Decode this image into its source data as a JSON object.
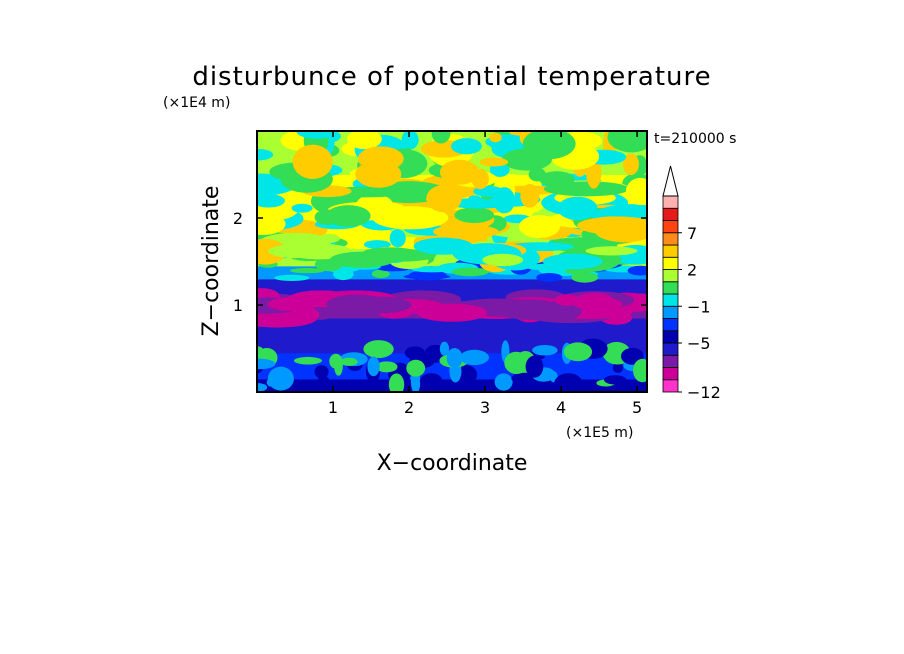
{
  "chart_data": {
    "type": "heatmap",
    "title": "disturbunce of potential temperature",
    "xlabel": "X−coordinate",
    "ylabel": "Z−coordinate",
    "x_unit": "(×1E5 m)",
    "y_unit": "(×1E4 m)",
    "time_label": "t=210000 s",
    "xlim": [
      0,
      5.13
    ],
    "ylim": [
      0,
      3.0
    ],
    "x_ticks": [
      1,
      2,
      3,
      4,
      5
    ],
    "y_ticks": [
      1,
      2
    ],
    "colorbar": {
      "levels": [
        -12,
        -11,
        -9,
        -7,
        -5,
        -3,
        -2,
        -1,
        0,
        1,
        2,
        3,
        5,
        7,
        9,
        11
      ],
      "labels": [
        {
          "value": 7,
          "text": "7"
        },
        {
          "value": 2,
          "text": "2"
        },
        {
          "value": -1,
          "text": "−1"
        },
        {
          "value": -5,
          "text": "−5"
        },
        {
          "value": -12,
          "text": "−12"
        }
      ],
      "colors": [
        "#ff33cc",
        "#cc0099",
        "#7a1aa6",
        "#1f1acc",
        "#0000b0",
        "#0033ff",
        "#0099ff",
        "#00e6e6",
        "#33dd55",
        "#aaff33",
        "#ffff00",
        "#ffcc00",
        "#ff8c1a",
        "#ff4411",
        "#e61a1a",
        "#ffb0b0"
      ],
      "extend": "max"
    },
    "bands": [
      {
        "z": [
          0.0,
          0.15
        ],
        "value": -3.5
      },
      {
        "z": [
          0.15,
          0.45
        ],
        "value": -2.5
      },
      {
        "z": [
          0.45,
          0.85
        ],
        "value": -5.5
      },
      {
        "z": [
          0.85,
          1.05
        ],
        "value": -7.5
      },
      {
        "z": [
          1.05,
          1.3
        ],
        "value": -5.5
      },
      {
        "z": [
          1.3,
          1.45
        ],
        "value": -1.5
      },
      {
        "z": [
          1.45,
          1.65
        ],
        "value": 1.0
      },
      {
        "z": [
          1.65,
          2.0
        ],
        "value": 2.5
      },
      {
        "z": [
          2.0,
          2.5
        ],
        "value": 2.0
      },
      {
        "z": [
          2.5,
          3.0
        ],
        "value": 1.0
      }
    ]
  }
}
